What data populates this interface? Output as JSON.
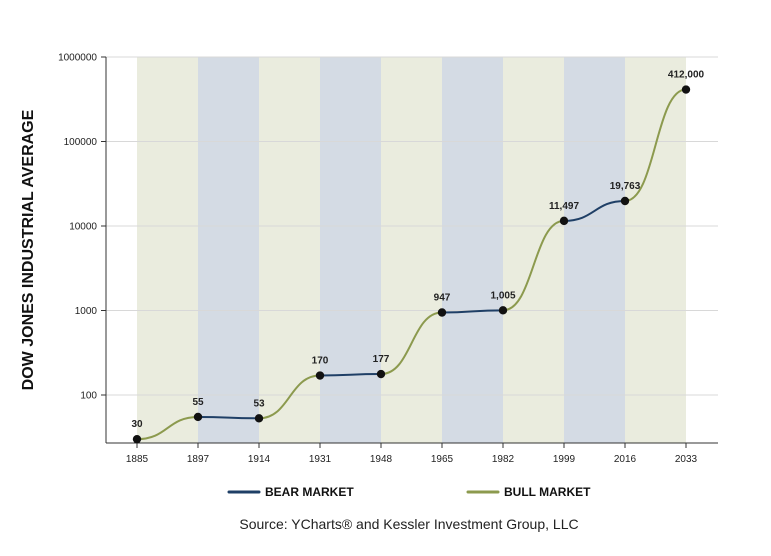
{
  "chart_data": {
    "type": "line",
    "title": "",
    "ylabel": "DOW JONES INDUSTRIAL AVERAGE",
    "xlabel": "",
    "yscale": "log",
    "ylim": [
      30,
      1000000
    ],
    "y_ticks": [
      {
        "value": 100,
        "label": "100"
      },
      {
        "value": 1000,
        "label": "1000"
      },
      {
        "value": 10000,
        "label": "10000"
      },
      {
        "value": 100000,
        "label": "100000"
      },
      {
        "value": 1000000,
        "label": "1000000"
      }
    ],
    "x_ticks": [
      "1885",
      "1897",
      "1914",
      "1931",
      "1948",
      "1965",
      "1982",
      "1999",
      "2016",
      "2033"
    ],
    "grid": true,
    "points": [
      {
        "x": "1885",
        "y": 30,
        "label": "30"
      },
      {
        "x": "1897",
        "y": 55,
        "label": "55"
      },
      {
        "x": "1914",
        "y": 53,
        "label": "53"
      },
      {
        "x": "1931",
        "y": 170,
        "label": "170"
      },
      {
        "x": "1948",
        "y": 177,
        "label": "177"
      },
      {
        "x": "1965",
        "y": 947,
        "label": "947"
      },
      {
        "x": "1982",
        "y": 1005,
        "label": "1,005"
      },
      {
        "x": "1999",
        "y": 11497,
        "label": "11,497"
      },
      {
        "x": "2016",
        "y": 19763,
        "label": "19,763"
      },
      {
        "x": "2033",
        "y": 412000,
        "label": "412,000"
      }
    ],
    "segments": [
      {
        "from": 0,
        "to": 1,
        "market": "bull"
      },
      {
        "from": 1,
        "to": 2,
        "market": "bear"
      },
      {
        "from": 2,
        "to": 3,
        "market": "bull"
      },
      {
        "from": 3,
        "to": 4,
        "market": "bear"
      },
      {
        "from": 4,
        "to": 5,
        "market": "bull"
      },
      {
        "from": 5,
        "to": 6,
        "market": "bear"
      },
      {
        "from": 6,
        "to": 7,
        "market": "bull"
      },
      {
        "from": 7,
        "to": 8,
        "market": "bear"
      },
      {
        "from": 8,
        "to": 9,
        "market": "bull"
      }
    ],
    "bands": [
      {
        "from": "1885",
        "to": "1897",
        "market": "bull"
      },
      {
        "from": "1897",
        "to": "1914",
        "market": "bear"
      },
      {
        "from": "1914",
        "to": "1931",
        "market": "bull"
      },
      {
        "from": "1931",
        "to": "1948",
        "market": "bear"
      },
      {
        "from": "1948",
        "to": "1965",
        "market": "bull"
      },
      {
        "from": "1965",
        "to": "1982",
        "market": "bear"
      },
      {
        "from": "1982",
        "to": "1999",
        "market": "bull"
      },
      {
        "from": "1999",
        "to": "2016",
        "market": "bear"
      },
      {
        "from": "2016",
        "to": "2033",
        "market": "bull"
      }
    ],
    "legend": {
      "placement": "bottom",
      "items": [
        {
          "key": "bear",
          "label": "BEAR MARKET"
        },
        {
          "key": "bull",
          "label": "BULL MARKET"
        }
      ]
    },
    "colors": {
      "bear_line": "#1f3f66",
      "bull_line": "#8c9a4e",
      "bear_band": "#d4dbe4",
      "bull_band": "#eaecde",
      "point": "#111111",
      "grid": "#d8d8d8",
      "axis": "#333333"
    }
  },
  "footer": {
    "source": "Source: YCharts® and Kessler Investment Group, LLC"
  }
}
